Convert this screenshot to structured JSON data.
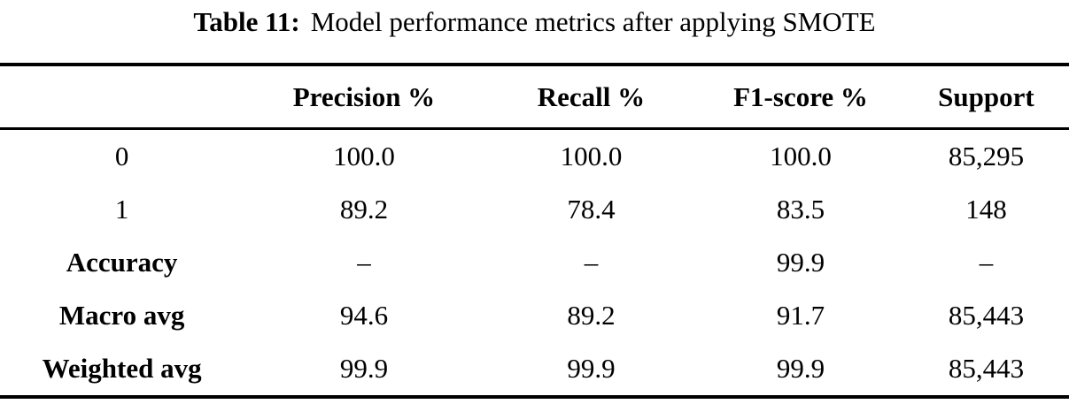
{
  "title": {
    "label": "Table 11:",
    "text": "Model performance metrics after applying SMOTE"
  },
  "table": {
    "columns": [
      "",
      "Precision %",
      "Recall %",
      "F1-score %",
      "Support"
    ],
    "rows": [
      {
        "label": "0",
        "values": [
          "100.0",
          "100.0",
          "100.0",
          "85,295"
        ]
      },
      {
        "label": "1",
        "values": [
          "89.2",
          "78.4",
          "83.5",
          "148"
        ]
      },
      {
        "label": "Accuracy",
        "values": [
          "–",
          "–",
          "99.9",
          "–"
        ]
      },
      {
        "label": "Macro avg",
        "values": [
          "94.6",
          "89.2",
          "91.7",
          "85,443"
        ]
      },
      {
        "label": "Weighted avg",
        "values": [
          "99.9",
          "99.9",
          "99.9",
          "85,443"
        ]
      }
    ]
  },
  "colors": {
    "text": "#000000",
    "background": "#ffffff",
    "rule": "#000000"
  }
}
